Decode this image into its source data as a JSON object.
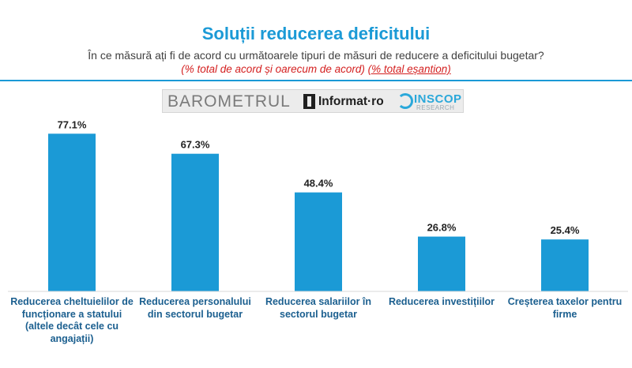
{
  "header": {
    "title": "Soluții reducerea deficitului",
    "subtitle": "În ce măsură ați fi de acord cu următoarele tipuri de măsuri de reducere a deficitului bugetar?",
    "note_part1": "(% total de acord și oarecum de acord)",
    "note_part2": "(% total eșantion)"
  },
  "logos": {
    "barometrul": "BAROMETRUL",
    "informat": "Informat·ro",
    "inscop": "INSCOP",
    "research": "RESEARCH"
  },
  "colors": {
    "bar": "#1b9ad6",
    "title": "#1b9ad6",
    "label": "#1b5f8f",
    "note": "#d42020"
  },
  "chart_data": {
    "type": "bar",
    "categories": [
      "Reducerea cheltuielilor de funcționare a statului (altele decât cele cu angajații)",
      "Reducerea personalului din sectorul bugetar",
      "Reducerea salariilor în sectorul bugetar",
      "Reducerea investițiilor",
      "Creșterea taxelor pentru firme"
    ],
    "values": [
      77.1,
      67.3,
      48.4,
      26.8,
      25.4
    ],
    "value_labels": [
      "77.1%",
      "67.3%",
      "48.4%",
      "26.8%",
      "25.4%"
    ],
    "unit": "%",
    "ylim": [
      0,
      100
    ],
    "grid": false,
    "legend": "none"
  }
}
